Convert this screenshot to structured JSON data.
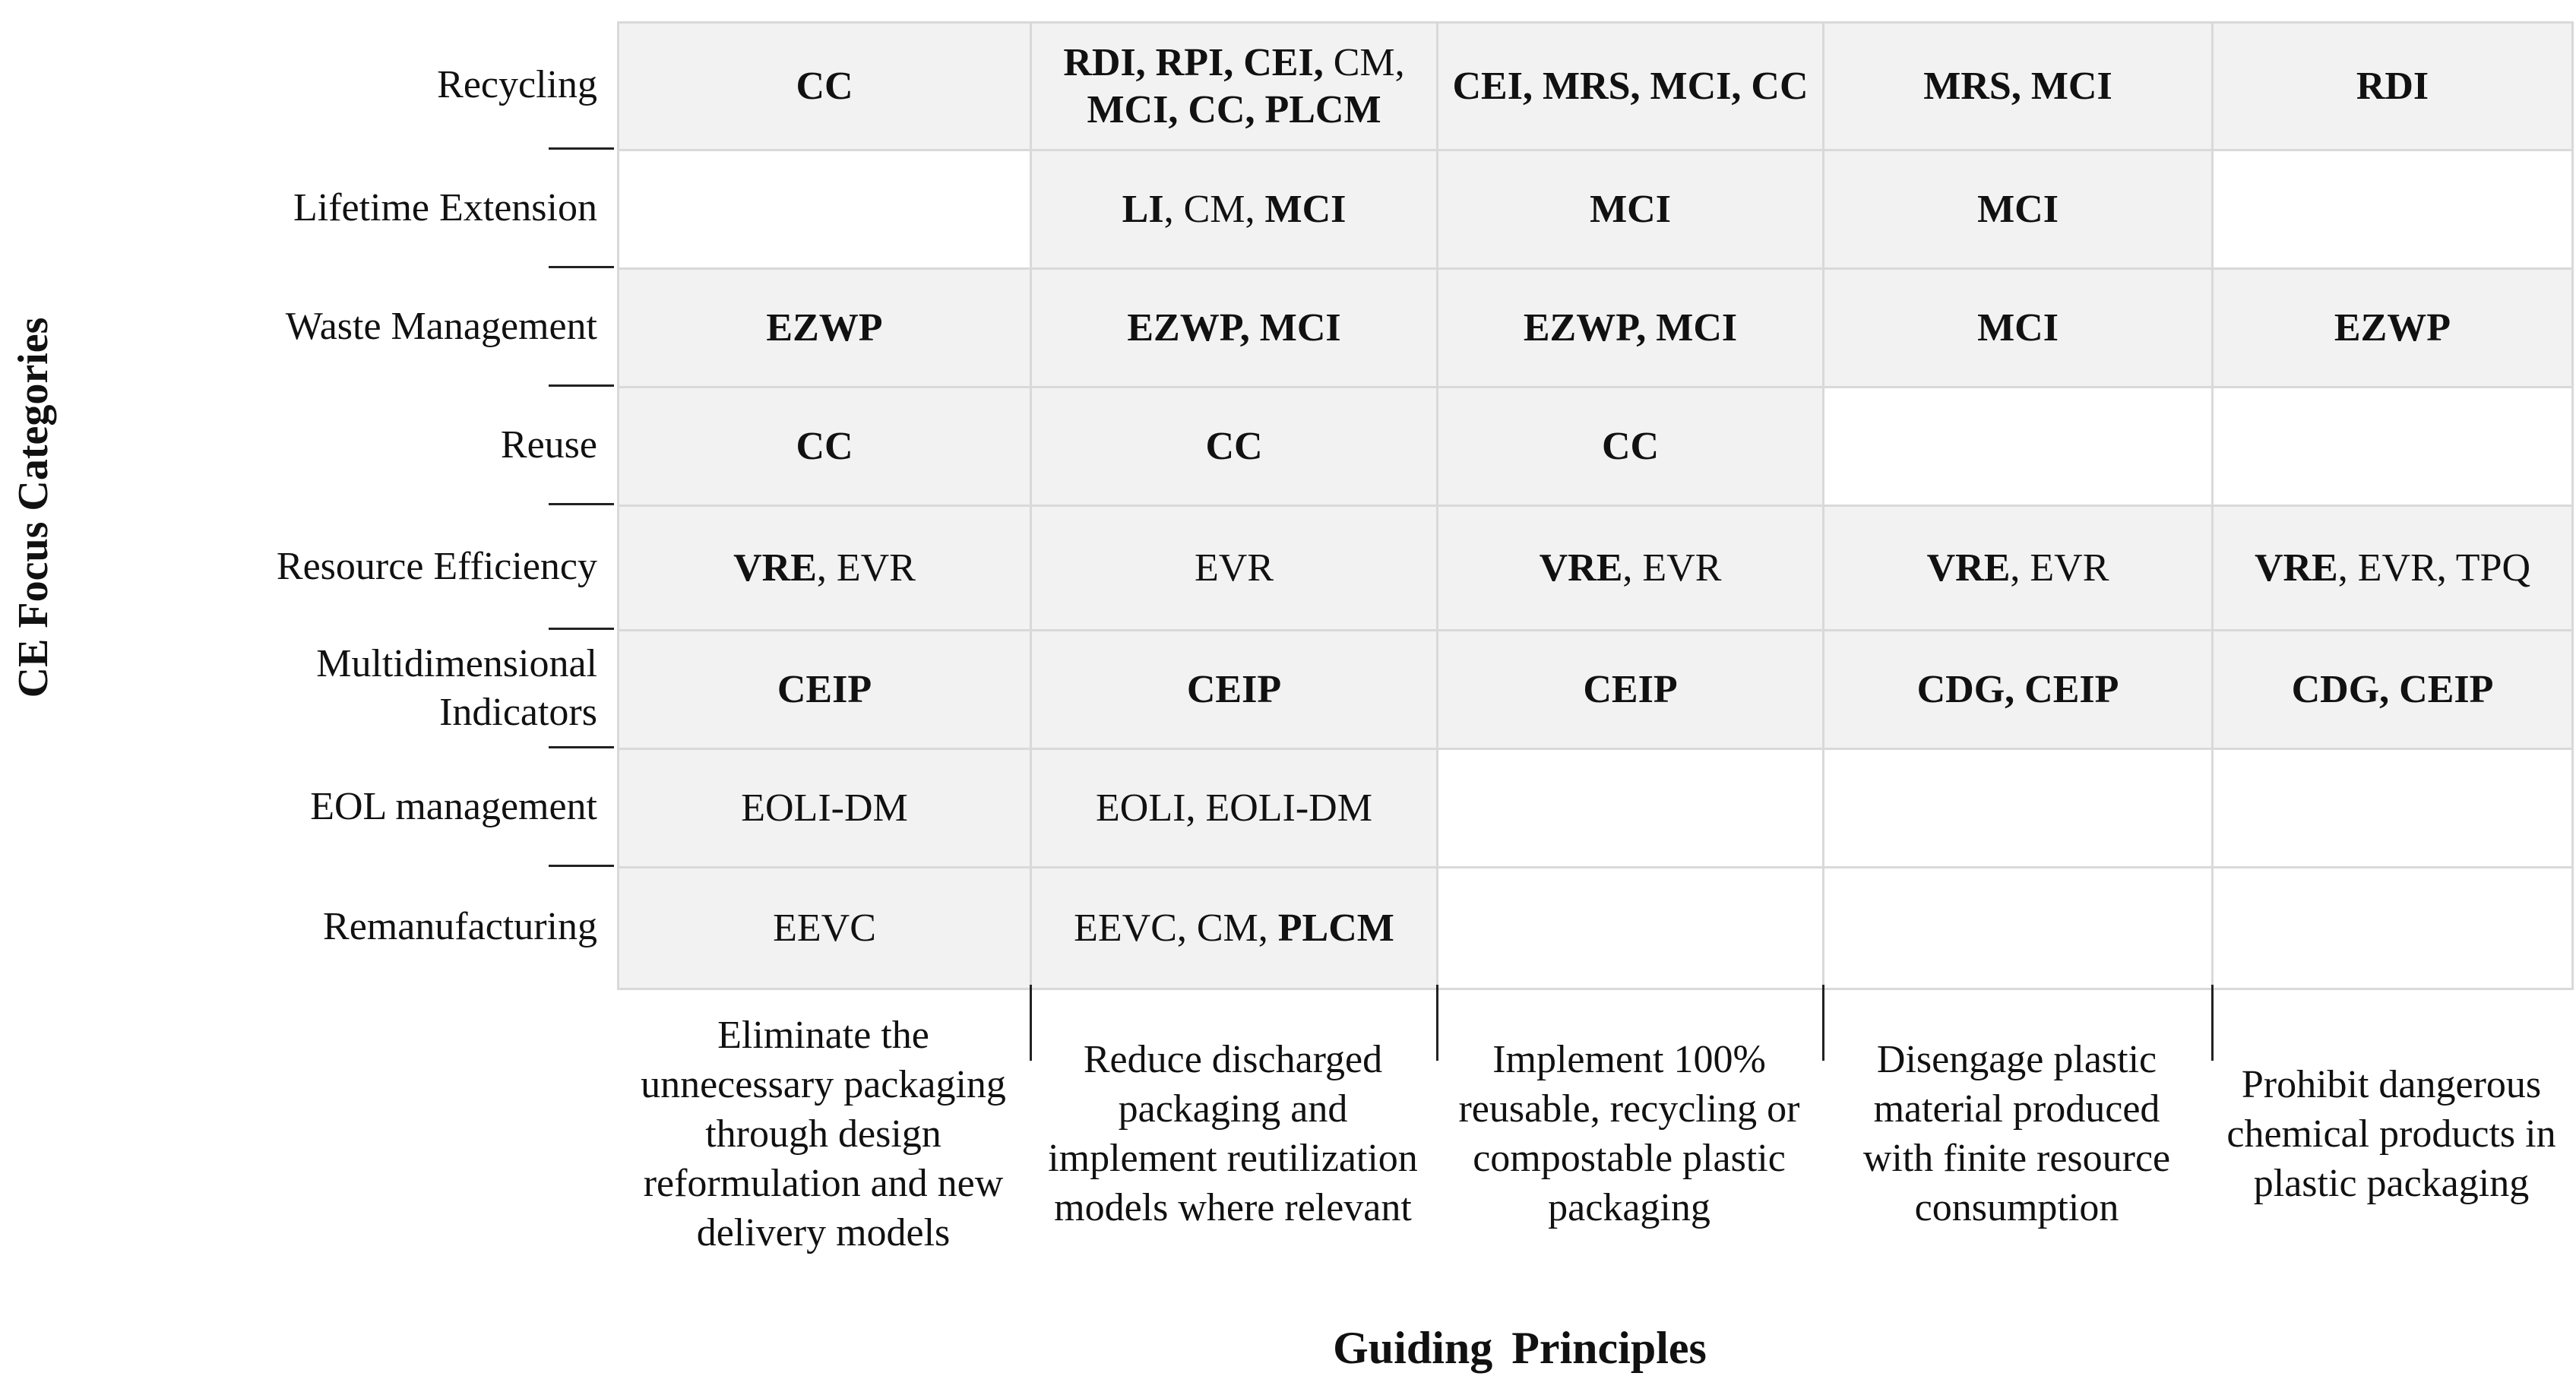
{
  "y_axis_title": "CE Focus Categories",
  "x_axis_title": "Guiding Principles",
  "columns": [
    "Eliminate the unnecessary packaging through design reformulation and new delivery models",
    "Reduce discharged packaging and implement reutilization models where relevant",
    "Implement 100% reusable, recycling or compostable plastic packaging",
    "Disengage plastic material produced with finite resource consumption",
    "Prohibit dangerous chemical products in plastic packaging"
  ],
  "rows": [
    {
      "label": "Recycling",
      "cells": [
        [
          {
            "t": "CC",
            "b": true
          }
        ],
        [
          {
            "t": "RDI, RPI, CEI, ",
            "b": true
          },
          {
            "t": "CM,",
            "b": false
          },
          {
            "t": " MCI, CC, PLCM",
            "b": true
          }
        ],
        [
          {
            "t": "CEI, MRS, MCI, CC",
            "b": true
          }
        ],
        [
          {
            "t": "MRS, MCI",
            "b": true
          }
        ],
        [
          {
            "t": "RDI",
            "b": true
          }
        ]
      ]
    },
    {
      "label": "Lifetime Extension",
      "cells": [
        [],
        [
          {
            "t": "LI",
            "b": true
          },
          {
            "t": ", CM, ",
            "b": false
          },
          {
            "t": "MCI",
            "b": true
          }
        ],
        [
          {
            "t": "MCI",
            "b": true
          }
        ],
        [
          {
            "t": "MCI",
            "b": true
          }
        ],
        []
      ]
    },
    {
      "label": "Waste Management",
      "cells": [
        [
          {
            "t": "EZWP",
            "b": true
          }
        ],
        [
          {
            "t": "EZWP, MCI",
            "b": true
          }
        ],
        [
          {
            "t": "EZWP, MCI",
            "b": true
          }
        ],
        [
          {
            "t": "MCI",
            "b": true
          }
        ],
        [
          {
            "t": "EZWP",
            "b": true
          }
        ]
      ]
    },
    {
      "label": "Reuse",
      "cells": [
        [
          {
            "t": "CC",
            "b": true
          }
        ],
        [
          {
            "t": "CC",
            "b": true
          }
        ],
        [
          {
            "t": "CC",
            "b": true
          }
        ],
        [],
        []
      ]
    },
    {
      "label": "Resource Efficiency",
      "cells": [
        [
          {
            "t": "VRE",
            "b": true
          },
          {
            "t": ", EVR",
            "b": false
          }
        ],
        [
          {
            "t": "EVR",
            "b": false
          }
        ],
        [
          {
            "t": "VRE",
            "b": true
          },
          {
            "t": ", EVR",
            "b": false
          }
        ],
        [
          {
            "t": "VRE",
            "b": true
          },
          {
            "t": ", EVR",
            "b": false
          }
        ],
        [
          {
            "t": "VRE",
            "b": true
          },
          {
            "t": ", EVR, TPQ",
            "b": false
          }
        ]
      ]
    },
    {
      "label": "Multidimensional Indicators",
      "cells": [
        [
          {
            "t": "CEIP",
            "b": true
          }
        ],
        [
          {
            "t": "CEIP",
            "b": true
          }
        ],
        [
          {
            "t": "CEIP",
            "b": true
          }
        ],
        [
          {
            "t": "CDG, CEIP",
            "b": true
          }
        ],
        [
          {
            "t": "CDG, CEIP",
            "b": true
          }
        ]
      ]
    },
    {
      "label": "EOL management",
      "cells": [
        [
          {
            "t": "EOLI-DM",
            "b": false
          }
        ],
        [
          {
            "t": "EOLI, EOLI-DM",
            "b": false
          }
        ],
        [],
        [],
        []
      ]
    },
    {
      "label": "Remanufacturing",
      "cells": [
        [
          {
            "t": "EEVC",
            "b": false
          }
        ],
        [
          {
            "t": "EEVC, CM, ",
            "b": false
          },
          {
            "t": "PLCM",
            "b": true
          }
        ],
        [],
        [],
        []
      ]
    }
  ]
}
